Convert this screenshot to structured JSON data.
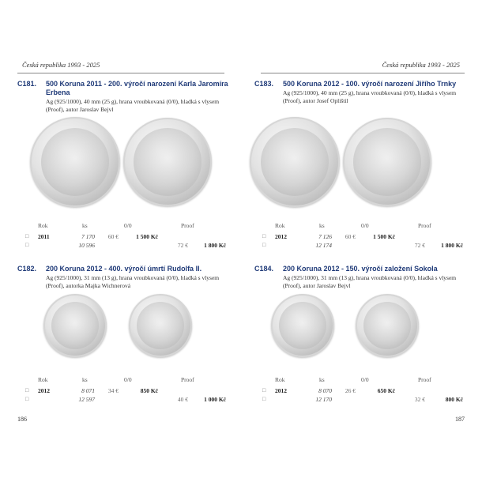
{
  "header": {
    "left": "Česká republika 1993 - 2025",
    "right": "Česká republika 1993 - 2025"
  },
  "columns": {
    "year": "Rok",
    "mintage": "ks",
    "unc": "0/0",
    "proof": "Proof"
  },
  "entries": [
    {
      "no": "C181.",
      "title": "500 Koruna 2011 - 200. výročí narození Karla Jaromíra Erbena",
      "desc1": "Ag (925/1000), 40 mm (25 g), hrana vroubkovaná (0/0), hladká s vlysem",
      "desc2": "(Proof), autor Jaroslav Bejvl",
      "rows": [
        {
          "year": "2011",
          "ks": "7 170",
          "eur": "60 €",
          "czk": "1 500 Kč"
        },
        {
          "year": "",
          "ks": "10 596",
          "eur": "72 €",
          "czk": "1 800 Kč"
        }
      ]
    },
    {
      "no": "C182.",
      "title": "200 Koruna 2012 - 400. výročí úmrtí Rudolfa II.",
      "desc1": "Ag (925/1000), 31 mm (13 g), hrana vroubkovaná (0/0), hladká s vlysem",
      "desc2": "(Proof), autorka Majka Wichnerová",
      "rows": [
        {
          "year": "2012",
          "ks": "8 071",
          "eur": "34 €",
          "czk": "850 Kč"
        },
        {
          "year": "",
          "ks": "12 597",
          "eur": "40 €",
          "czk": "1 000 Kč"
        }
      ]
    },
    {
      "no": "C183.",
      "title": "500 Koruna 2012 - 100. výročí narození Jiřího Trnky",
      "desc1": "Ag (925/1000), 40 mm (25 g), hrana vroubkovaná (0/0), hladká s vlysem",
      "desc2": "(Proof), autor Josef Oplištil",
      "rows": [
        {
          "year": "2012",
          "ks": "7 126",
          "eur": "60 €",
          "czk": "1 500 Kč"
        },
        {
          "year": "",
          "ks": "12 174",
          "eur": "72 €",
          "czk": "1 800 Kč"
        }
      ]
    },
    {
      "no": "C184.",
      "title": "200 Koruna 2012 - 150. výročí založení Sokola",
      "desc1": "Ag (925/1000), 31 mm (13 g), hrana vroubkovaná (0/0), hladká s vlysem",
      "desc2": "(Proof), autor Jaroslav Bejvl",
      "rows": [
        {
          "year": "2012",
          "ks": "8 070",
          "eur": "26 €",
          "czk": "650 Kč"
        },
        {
          "year": "",
          "ks": "12 170",
          "eur": "32 €",
          "czk": "800 Kč"
        }
      ]
    }
  ],
  "pages": {
    "left": "186",
    "right": "187"
  }
}
